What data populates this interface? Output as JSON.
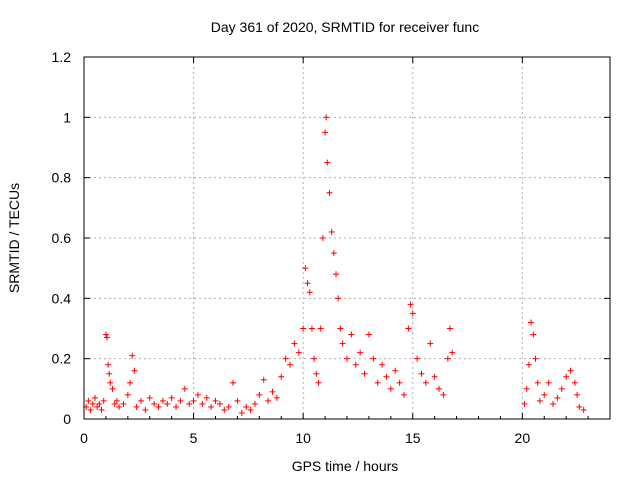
{
  "chart_data": {
    "type": "scatter",
    "title": "Day 361 of 2020, SRMTID for receiver func",
    "xlabel": "GPS time / hours",
    "ylabel": "SRMTID / TECUs",
    "xlim": [
      0,
      24
    ],
    "ylim": [
      0,
      1.2
    ],
    "xticks": [
      0,
      5,
      10,
      15,
      20
    ],
    "xtick_labels": [
      "0",
      "5",
      "10",
      "15",
      "20"
    ],
    "yticks": [
      0,
      0.2,
      0.4,
      0.6,
      0.8,
      1,
      1.2
    ],
    "ytick_labels": [
      "0",
      "0.2",
      "0.4",
      "0.6",
      "0.8",
      "1",
      "1.2"
    ],
    "grid": true,
    "marker": "+",
    "color": "#ff0000",
    "series": [
      {
        "name": "SRMTID",
        "points": [
          [
            0.1,
            0.04
          ],
          [
            0.2,
            0.06
          ],
          [
            0.3,
            0.03
          ],
          [
            0.4,
            0.05
          ],
          [
            0.5,
            0.07
          ],
          [
            0.6,
            0.04
          ],
          [
            0.7,
            0.05
          ],
          [
            0.8,
            0.03
          ],
          [
            0.9,
            0.06
          ],
          [
            1.0,
            0.28
          ],
          [
            1.05,
            0.27
          ],
          [
            1.1,
            0.18
          ],
          [
            1.15,
            0.15
          ],
          [
            1.2,
            0.12
          ],
          [
            1.3,
            0.1
          ],
          [
            1.4,
            0.05
          ],
          [
            1.5,
            0.06
          ],
          [
            1.6,
            0.04
          ],
          [
            1.8,
            0.05
          ],
          [
            2.0,
            0.08
          ],
          [
            2.1,
            0.12
          ],
          [
            2.2,
            0.21
          ],
          [
            2.3,
            0.16
          ],
          [
            2.4,
            0.04
          ],
          [
            2.6,
            0.06
          ],
          [
            2.8,
            0.03
          ],
          [
            3.0,
            0.07
          ],
          [
            3.2,
            0.05
          ],
          [
            3.4,
            0.04
          ],
          [
            3.6,
            0.06
          ],
          [
            3.8,
            0.05
          ],
          [
            4.0,
            0.07
          ],
          [
            4.2,
            0.04
          ],
          [
            4.4,
            0.06
          ],
          [
            4.6,
            0.1
          ],
          [
            4.8,
            0.05
          ],
          [
            5.0,
            0.06
          ],
          [
            5.2,
            0.08
          ],
          [
            5.4,
            0.05
          ],
          [
            5.6,
            0.07
          ],
          [
            5.8,
            0.04
          ],
          [
            6.0,
            0.06
          ],
          [
            6.2,
            0.05
          ],
          [
            6.4,
            0.03
          ],
          [
            6.6,
            0.04
          ],
          [
            6.8,
            0.12
          ],
          [
            7.0,
            0.06
          ],
          [
            7.2,
            0.02
          ],
          [
            7.4,
            0.04
          ],
          [
            7.6,
            0.03
          ],
          [
            7.8,
            0.05
          ],
          [
            8.0,
            0.08
          ],
          [
            8.2,
            0.13
          ],
          [
            8.4,
            0.06
          ],
          [
            8.6,
            0.09
          ],
          [
            8.8,
            0.07
          ],
          [
            9.0,
            0.14
          ],
          [
            9.2,
            0.2
          ],
          [
            9.4,
            0.18
          ],
          [
            9.6,
            0.25
          ],
          [
            9.8,
            0.22
          ],
          [
            10.0,
            0.3
          ],
          [
            10.1,
            0.5
          ],
          [
            10.2,
            0.45
          ],
          [
            10.3,
            0.42
          ],
          [
            10.4,
            0.3
          ],
          [
            10.5,
            0.2
          ],
          [
            10.6,
            0.15
          ],
          [
            10.7,
            0.12
          ],
          [
            10.8,
            0.3
          ],
          [
            10.9,
            0.6
          ],
          [
            11.0,
            0.95
          ],
          [
            11.05,
            1.0
          ],
          [
            11.1,
            0.85
          ],
          [
            11.2,
            0.75
          ],
          [
            11.3,
            0.62
          ],
          [
            11.4,
            0.55
          ],
          [
            11.5,
            0.48
          ],
          [
            11.6,
            0.4
          ],
          [
            11.7,
            0.3
          ],
          [
            11.8,
            0.25
          ],
          [
            12.0,
            0.2
          ],
          [
            12.2,
            0.28
          ],
          [
            12.4,
            0.18
          ],
          [
            12.6,
            0.22
          ],
          [
            12.8,
            0.15
          ],
          [
            13.0,
            0.28
          ],
          [
            13.2,
            0.2
          ],
          [
            13.4,
            0.12
          ],
          [
            13.6,
            0.18
          ],
          [
            13.8,
            0.14
          ],
          [
            14.0,
            0.1
          ],
          [
            14.2,
            0.16
          ],
          [
            14.4,
            0.12
          ],
          [
            14.6,
            0.08
          ],
          [
            14.8,
            0.3
          ],
          [
            14.9,
            0.38
          ],
          [
            15.0,
            0.35
          ],
          [
            15.2,
            0.2
          ],
          [
            15.4,
            0.15
          ],
          [
            15.6,
            0.12
          ],
          [
            15.8,
            0.25
          ],
          [
            16.0,
            0.14
          ],
          [
            16.2,
            0.1
          ],
          [
            16.4,
            0.08
          ],
          [
            16.6,
            0.2
          ],
          [
            16.7,
            0.3
          ],
          [
            16.8,
            0.22
          ],
          [
            20.1,
            0.05
          ],
          [
            20.2,
            0.1
          ],
          [
            20.3,
            0.18
          ],
          [
            20.4,
            0.32
          ],
          [
            20.5,
            0.28
          ],
          [
            20.6,
            0.2
          ],
          [
            20.7,
            0.12
          ],
          [
            20.8,
            0.06
          ],
          [
            21.0,
            0.08
          ],
          [
            21.2,
            0.12
          ],
          [
            21.4,
            0.05
          ],
          [
            21.6,
            0.07
          ],
          [
            21.8,
            0.1
          ],
          [
            22.0,
            0.14
          ],
          [
            22.2,
            0.16
          ],
          [
            22.4,
            0.12
          ],
          [
            22.5,
            0.08
          ],
          [
            22.6,
            0.04
          ],
          [
            22.8,
            0.03
          ]
        ]
      }
    ]
  }
}
